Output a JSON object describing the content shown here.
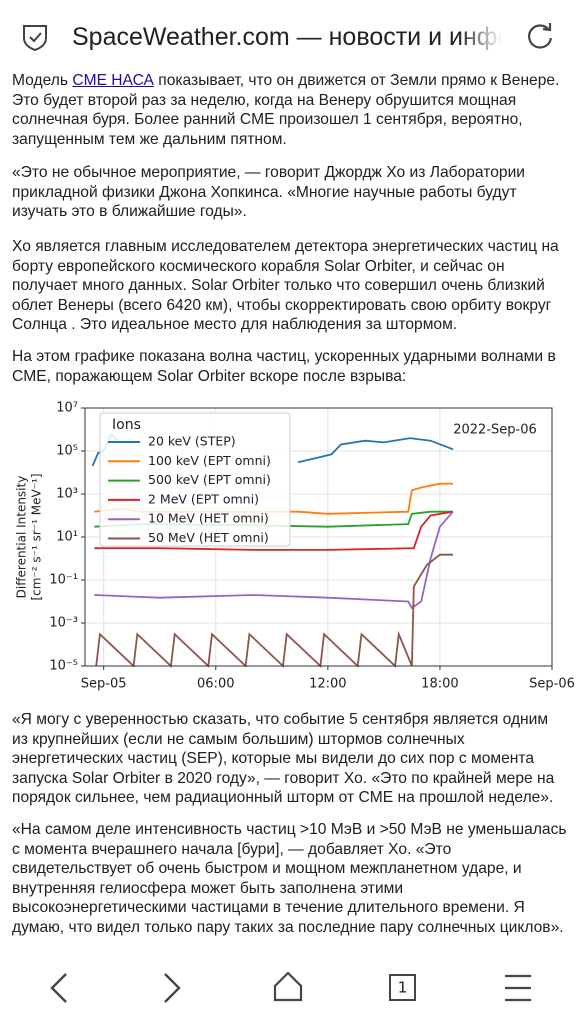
{
  "header": {
    "title": "SpaceWeather.com — новости и инфо"
  },
  "article": {
    "p1": {
      "before": "Модель ",
      "link": "CME НАСА",
      "after": " показывает, что он движется от Земли прямо к Венере. Это будет второй раз за неделю, когда на Венеру обрушится мощная солнечная буря. Более ранний CME произошел 1 сентября, вероятно, запущенным тем же дальним пятном."
    },
    "p2": "«Это не обычное мероприятие, — говорит Джордж Хо из Лаборатории прикладной физики Джона Хопкинса. «Многие научные работы будут изучать это в ближайшие годы».",
    "p3": "Хо является главным исследователем детектора энергетических частиц на борту европейского космического корабля Solar Orbiter, и сейчас он получает много данных. Solar Orbiter только что совершил очень близкий облет Венеры (всего 6420 км), чтобы скорректировать свою орбиту вокруг Солнца . Это идеальное место для наблюдения за штормом.",
    "p4": "На этом графике показана волна частиц, ускоренных ударными волнами в CME, поражающем Solar Orbiter вскоре после взрыва:",
    "p5": "«Я могу с уверенностью сказать, что событие 5 сентября является одним из крупнейших (если не самым большим) штормов солнечных энергетических частиц (SEP), которые мы видели до сих пор с момента запуска Solar Orbiter в 2020 году», — говорит Хо. «Это по крайней мере на порядок сильнее, чем радиационный шторм от CME на прошлой неделе».",
    "p6": "«На самом деле интенсивность частиц >10 МэВ и >50 МэВ не уменьшалась с момента вчерашнего начала [бури], — добавляет Хо. «Это свидетельствует об очень быстром и мощном межпланетном ударе, и внутренняя гелиосфера может быть заполнена этими высокоэнергетическими частицами в течение длительного времени. Я думаю, что видел только пару таких за последние пару солнечных циклов»."
  },
  "figure": {
    "type": "line",
    "legend_title": "Ions",
    "annotation": "2022-Sep-06",
    "ylabel": [
      "Differential Intensity",
      "[cm⁻² s⁻¹ sr⁻¹ MeV⁻¹]"
    ],
    "log_y": true,
    "grid": true,
    "legend": "upper left",
    "xlim": [
      -1,
      24
    ],
    "xticks": [
      {
        "value": 0,
        "label": "Sep-05"
      },
      {
        "value": 6,
        "label": "06:00"
      },
      {
        "value": 12,
        "label": "12:00"
      },
      {
        "value": 18,
        "label": "18:00"
      },
      {
        "value": 24,
        "label": "Sep-06"
      }
    ],
    "ylim": [
      1e-05,
      10000000
    ],
    "yticks": [
      {
        "value": 10000000,
        "label": "10⁷"
      },
      {
        "value": 100000,
        "label": "10⁵"
      },
      {
        "value": 1000,
        "label": "10³"
      },
      {
        "value": 10,
        "label": "10¹"
      },
      {
        "value": 0.1,
        "label": "10⁻¹"
      },
      {
        "value": 0.001,
        "label": "10⁻³"
      },
      {
        "value": 1e-05,
        "label": "10⁻⁵"
      }
    ],
    "series": [
      {
        "name": "20 keV (STEP)",
        "color": "#1f77b4",
        "x": [
          -0.6,
          -0.3,
          0,
          0.4,
          0.8,
          5,
          10.4,
          11.5,
          12.2,
          12.7,
          14,
          15,
          16.4,
          17.5,
          18.7
        ],
        "values": [
          20000,
          80000,
          100000,
          600000,
          300000,
          null,
          30000,
          50000,
          70000,
          200000,
          300000,
          250000,
          400000,
          300000,
          120000
        ]
      },
      {
        "name": "100 keV (EPT omni)",
        "color": "#ff7f0e",
        "x": [
          -0.5,
          1,
          2,
          6,
          10.4,
          12,
          16.3,
          16.5,
          17,
          18,
          18.7
        ],
        "values": [
          150,
          200,
          150,
          150,
          150,
          120,
          150,
          1500,
          2000,
          3000,
          3000
        ]
      },
      {
        "name": "500 keV (EPT omni)",
        "color": "#2ca02c",
        "x": [
          -0.5,
          2,
          8,
          12,
          16.3,
          16.5,
          17.5,
          18.7
        ],
        "values": [
          30,
          40,
          35,
          30,
          40,
          120,
          150,
          150
        ]
      },
      {
        "name": "2 MeV (EPT omni)",
        "color": "#d62728",
        "x": [
          -0.5,
          3,
          8,
          12,
          16.6,
          17,
          17.5,
          18.7
        ],
        "values": [
          3,
          3,
          2.5,
          2.5,
          3,
          30,
          100,
          150
        ]
      },
      {
        "name": "10 MeV (HET omni)",
        "color": "#9467bd",
        "x": [
          -0.5,
          3,
          8,
          12,
          16.3,
          16.5,
          17,
          17.5,
          18,
          18.7
        ],
        "values": [
          0.02,
          0.015,
          0.02,
          0.015,
          0.01,
          0.005,
          0.01,
          1,
          30,
          150
        ]
      },
      {
        "name": "50 MeV (HET omni)",
        "color": "#8c564b",
        "x": [
          -0.4,
          -0.2,
          1.6,
          1.8,
          3.6,
          3.8,
          5.6,
          5.8,
          7.6,
          7.8,
          9.6,
          9.8,
          11.6,
          11.8,
          13.6,
          13.8,
          15.6,
          15.8,
          16.5,
          16.6,
          17.3,
          18,
          18.7
        ],
        "values": [
          1e-05,
          0.0003,
          1e-05,
          0.0003,
          1e-05,
          0.0003,
          1e-05,
          0.0003,
          1e-05,
          0.0003,
          1e-05,
          0.0003,
          1e-05,
          0.0003,
          1e-05,
          0.0003,
          1e-05,
          0.0003,
          1e-05,
          0.05,
          0.5,
          1.5,
          1.5
        ]
      }
    ]
  },
  "nav": {
    "tabs": "1"
  }
}
